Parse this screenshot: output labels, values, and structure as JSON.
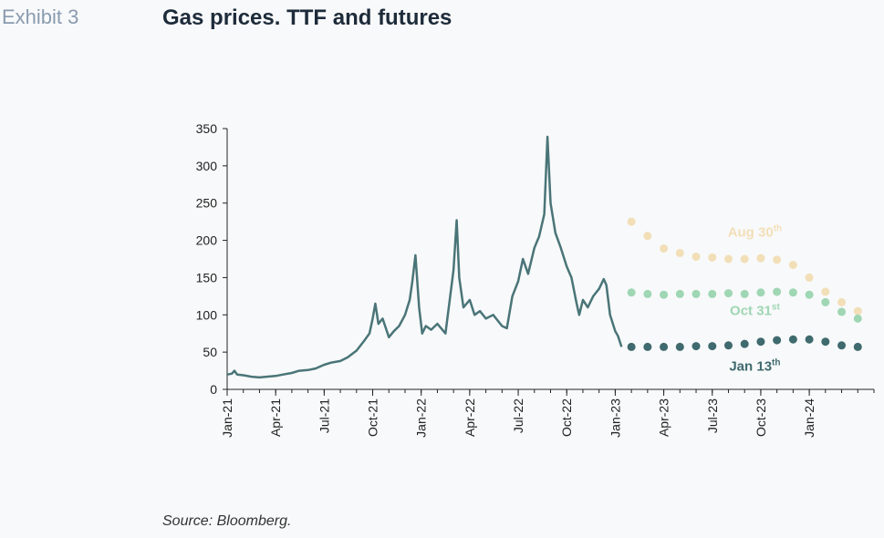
{
  "header": {
    "exhibit": "Exhibit 3",
    "title": "Gas prices. TTF and futures"
  },
  "footer": {
    "source": "Source: Bloomberg."
  },
  "chart_data": {
    "type": "line",
    "title": "Gas prices. TTF and futures",
    "xlabel": "",
    "ylabel": "",
    "ylim": [
      0,
      350
    ],
    "xlim": [
      "2021-01",
      "2024-05"
    ],
    "yticks": [
      0,
      50,
      100,
      150,
      200,
      250,
      300,
      350
    ],
    "xticks": [
      "Jan-21",
      "Apr-21",
      "Jul-21",
      "Oct-21",
      "Jan-22",
      "Apr-22",
      "Jul-22",
      "Oct-22",
      "Jan-23",
      "Apr-23",
      "Jul-23",
      "Oct-23",
      "Jan-24"
    ],
    "grid": false,
    "legend": "none",
    "series": [
      {
        "name": "",
        "style": "line",
        "color": "#4a7578",
        "points": [
          [
            "2021-01-01",
            20
          ],
          [
            "2021-01-10",
            21
          ],
          [
            "2021-01-15",
            25
          ],
          [
            "2021-01-20",
            20
          ],
          [
            "2021-02-01",
            19
          ],
          [
            "2021-02-15",
            17
          ],
          [
            "2021-03-01",
            16
          ],
          [
            "2021-03-15",
            17
          ],
          [
            "2021-04-01",
            18
          ],
          [
            "2021-04-15",
            20
          ],
          [
            "2021-05-01",
            22
          ],
          [
            "2021-05-15",
            25
          ],
          [
            "2021-06-01",
            26
          ],
          [
            "2021-06-15",
            28
          ],
          [
            "2021-07-01",
            33
          ],
          [
            "2021-07-15",
            36
          ],
          [
            "2021-08-01",
            38
          ],
          [
            "2021-08-15",
            43
          ],
          [
            "2021-09-01",
            52
          ],
          [
            "2021-09-15",
            65
          ],
          [
            "2021-09-25",
            75
          ],
          [
            "2021-10-01",
            95
          ],
          [
            "2021-10-06",
            115
          ],
          [
            "2021-10-12",
            88
          ],
          [
            "2021-10-20",
            95
          ],
          [
            "2021-11-01",
            70
          ],
          [
            "2021-11-10",
            78
          ],
          [
            "2021-11-20",
            85
          ],
          [
            "2021-12-01",
            100
          ],
          [
            "2021-12-10",
            120
          ],
          [
            "2021-12-15",
            145
          ],
          [
            "2021-12-21",
            180
          ],
          [
            "2021-12-28",
            110
          ],
          [
            "2022-01-03",
            75
          ],
          [
            "2022-01-10",
            85
          ],
          [
            "2022-01-20",
            80
          ],
          [
            "2022-02-01",
            88
          ],
          [
            "2022-02-15",
            75
          ],
          [
            "2022-02-24",
            130
          ],
          [
            "2022-03-01",
            160
          ],
          [
            "2022-03-07",
            227
          ],
          [
            "2022-03-12",
            150
          ],
          [
            "2022-03-20",
            110
          ],
          [
            "2022-04-01",
            120
          ],
          [
            "2022-04-10",
            100
          ],
          [
            "2022-04-20",
            105
          ],
          [
            "2022-05-01",
            95
          ],
          [
            "2022-05-15",
            100
          ],
          [
            "2022-06-01",
            85
          ],
          [
            "2022-06-10",
            82
          ],
          [
            "2022-06-20",
            125
          ],
          [
            "2022-07-01",
            145
          ],
          [
            "2022-07-10",
            175
          ],
          [
            "2022-07-20",
            155
          ],
          [
            "2022-08-01",
            190
          ],
          [
            "2022-08-10",
            205
          ],
          [
            "2022-08-20",
            235
          ],
          [
            "2022-08-26",
            339
          ],
          [
            "2022-09-01",
            250
          ],
          [
            "2022-09-10",
            210
          ],
          [
            "2022-09-20",
            190
          ],
          [
            "2022-10-01",
            165
          ],
          [
            "2022-10-10",
            150
          ],
          [
            "2022-10-20",
            115
          ],
          [
            "2022-10-25",
            100
          ],
          [
            "2022-11-01",
            120
          ],
          [
            "2022-11-10",
            110
          ],
          [
            "2022-11-20",
            125
          ],
          [
            "2022-12-01",
            135
          ],
          [
            "2022-12-10",
            148
          ],
          [
            "2022-12-15",
            140
          ],
          [
            "2022-12-22",
            100
          ],
          [
            "2023-01-01",
            78
          ],
          [
            "2023-01-06",
            72
          ],
          [
            "2023-01-13",
            57
          ]
        ]
      },
      {
        "name": "Aug 30th",
        "style": "dots",
        "color": "#f2dfb8",
        "points": [
          [
            "2023-02-01",
            225
          ],
          [
            "2023-03-01",
            206
          ],
          [
            "2023-04-01",
            189
          ],
          [
            "2023-05-01",
            183
          ],
          [
            "2023-06-01",
            178
          ],
          [
            "2023-07-01",
            177
          ],
          [
            "2023-08-01",
            175
          ],
          [
            "2023-09-01",
            175
          ],
          [
            "2023-10-01",
            176
          ],
          [
            "2023-11-01",
            174
          ],
          [
            "2023-12-01",
            167
          ],
          [
            "2024-01-01",
            150
          ],
          [
            "2024-02-01",
            131
          ],
          [
            "2024-03-01",
            117
          ],
          [
            "2024-04-01",
            105
          ]
        ]
      },
      {
        "name": "Oct 31st",
        "style": "dots",
        "color": "#9fd6b4",
        "points": [
          [
            "2023-02-01",
            130
          ],
          [
            "2023-03-01",
            128
          ],
          [
            "2023-04-01",
            127
          ],
          [
            "2023-05-01",
            128
          ],
          [
            "2023-06-01",
            128
          ],
          [
            "2023-07-01",
            128
          ],
          [
            "2023-08-01",
            129
          ],
          [
            "2023-09-01",
            128
          ],
          [
            "2023-10-01",
            130
          ],
          [
            "2023-11-01",
            131
          ],
          [
            "2023-12-01",
            130
          ],
          [
            "2024-01-01",
            127
          ],
          [
            "2024-02-01",
            117
          ],
          [
            "2024-03-01",
            104
          ],
          [
            "2024-04-01",
            95
          ]
        ]
      },
      {
        "name": "Jan 13th",
        "style": "dots",
        "color": "#3f6a6e",
        "points": [
          [
            "2023-02-01",
            57
          ],
          [
            "2023-03-01",
            57
          ],
          [
            "2023-04-01",
            57
          ],
          [
            "2023-05-01",
            57
          ],
          [
            "2023-06-01",
            58
          ],
          [
            "2023-07-01",
            58
          ],
          [
            "2023-08-01",
            59
          ],
          [
            "2023-09-01",
            61
          ],
          [
            "2023-10-01",
            64
          ],
          [
            "2023-11-01",
            66
          ],
          [
            "2023-12-01",
            67
          ],
          [
            "2024-01-01",
            67
          ],
          [
            "2024-02-01",
            64
          ],
          [
            "2024-03-01",
            59
          ],
          [
            "2024-04-01",
            57
          ]
        ]
      }
    ],
    "annotations": [
      {
        "text": "Aug 30",
        "sup": "th",
        "color": "#f2dfb8",
        "x": "2023-09-20",
        "y": 205
      },
      {
        "text": "Oct 31",
        "sup": "st",
        "color": "#9fd6b4",
        "x": "2023-09-20",
        "y": 100
      },
      {
        "text": "Jan 13",
        "sup": "th",
        "color": "#3f6a6e",
        "x": "2023-09-20",
        "y": 25
      }
    ]
  }
}
